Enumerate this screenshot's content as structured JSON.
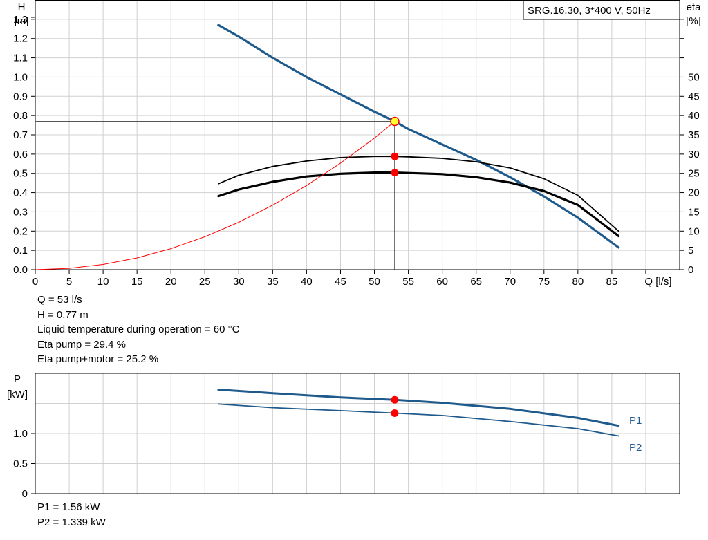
{
  "chart_data": [
    {
      "type": "line",
      "title": "SRG.16.30, 3*400 V, 50Hz",
      "xlabel": "Q [l/s]",
      "ylabel": "H",
      "ylabel_unit": "[m]",
      "y2label": "eta",
      "y2label_unit": "[%]",
      "xlim": [
        0,
        95
      ],
      "ylim": [
        0,
        1.4
      ],
      "y2lim": [
        0,
        70
      ],
      "xticks": [
        0,
        5,
        10,
        15,
        20,
        25,
        30,
        35,
        40,
        45,
        50,
        55,
        60,
        65,
        70,
        75,
        80,
        85
      ],
      "xticklabels": [
        "0",
        "5",
        "10",
        "15",
        "20",
        "25",
        "30",
        "35",
        "40",
        "45",
        "50",
        "55",
        "60",
        "65",
        "70",
        "75",
        "80",
        "85"
      ],
      "yticks": [
        0.0,
        0.1,
        0.2,
        0.3,
        0.4,
        0.5,
        0.6,
        0.7,
        0.8,
        0.9,
        1.0,
        1.1,
        1.2,
        1.3
      ],
      "yticklabels": [
        "0.0",
        "0.1",
        "0.2",
        "0.3",
        "0.4",
        "0.5",
        "0.6",
        "0.7",
        "0.8",
        "0.9",
        "1.0",
        "1.1",
        "1.2",
        "1.3"
      ],
      "y2ticks": [
        0,
        5,
        10,
        15,
        20,
        25,
        30,
        35,
        40,
        45,
        50
      ],
      "y2ticklabels": [
        "0",
        "5",
        "10",
        "15",
        "20",
        "25",
        "30",
        "35",
        "40",
        "45",
        "50"
      ],
      "grid": true,
      "series": [
        {
          "axis": "left",
          "color": "#1f5a8c",
          "x": [
            27,
            30,
            35,
            40,
            45,
            50,
            53,
            55,
            60,
            65,
            70,
            75,
            80,
            86
          ],
          "y": [
            1.27,
            1.21,
            1.1,
            1.0,
            0.91,
            0.82,
            0.77,
            0.73,
            0.65,
            0.57,
            0.48,
            0.38,
            0.27,
            0.115
          ]
        },
        {
          "axis": "right",
          "color": "#000000",
          "x": [
            27,
            30,
            35,
            40,
            45,
            50,
            53,
            55,
            60,
            65,
            70,
            75,
            80,
            86
          ],
          "y": [
            22.3,
            24.5,
            26.8,
            28.2,
            29.1,
            29.4,
            29.4,
            29.3,
            28.9,
            28.0,
            26.4,
            23.6,
            19.3,
            10
          ]
        },
        {
          "axis": "right",
          "color": "#000000",
          "x": [
            27,
            30,
            35,
            40,
            45,
            50,
            53,
            55,
            60,
            65,
            70,
            75,
            80,
            86
          ],
          "y": [
            19.1,
            20.8,
            22.8,
            24.2,
            24.9,
            25.2,
            25.2,
            25.1,
            24.8,
            24.0,
            22.6,
            20.4,
            16.8,
            8.7
          ]
        },
        {
          "axis": "left",
          "color": "#ff0000",
          "x": [
            0,
            5,
            10,
            15,
            20,
            25,
            30,
            35,
            40,
            45,
            50,
            53
          ],
          "y": [
            0.0,
            0.007,
            0.027,
            0.061,
            0.109,
            0.171,
            0.246,
            0.335,
            0.437,
            0.553,
            0.683,
            0.77
          ]
        }
      ],
      "operating_point": {
        "x": 53,
        "y": 0.77,
        "eta_pump": 29.4,
        "eta_pump_motor": 25.2
      }
    },
    {
      "type": "line",
      "ylabel": "P",
      "ylabel_unit": "[kW]",
      "xlim": [
        0,
        95
      ],
      "ylim": [
        0,
        2.0
      ],
      "yticks": [
        0,
        0.5,
        1.0
      ],
      "yticklabels": [
        "0",
        "0.5",
        "1.0"
      ],
      "grid": true,
      "series": [
        {
          "name": "P1",
          "color": "#1f5a8c",
          "x": [
            27,
            35,
            45,
            53,
            60,
            70,
            80,
            86
          ],
          "y": [
            1.73,
            1.67,
            1.6,
            1.56,
            1.51,
            1.41,
            1.26,
            1.13
          ]
        },
        {
          "name": "P2",
          "color": "#1f5a8c",
          "x": [
            27,
            35,
            45,
            53,
            60,
            70,
            80,
            86
          ],
          "y": [
            1.49,
            1.43,
            1.38,
            1.339,
            1.3,
            1.2,
            1.08,
            0.96
          ]
        }
      ],
      "operating_point": {
        "x": 53,
        "p1": 1.56,
        "p2": 1.339
      }
    }
  ],
  "info_top": [
    "Q = 53 l/s",
    "H = 0.77 m",
    "Liquid temperature during operation = 60 °C",
    "Eta pump = 29.4 %",
    "Eta pump+motor = 25.2 %"
  ],
  "info_bottom": [
    "P1 = 1.56 kW",
    "P2 = 1.339 kW"
  ]
}
